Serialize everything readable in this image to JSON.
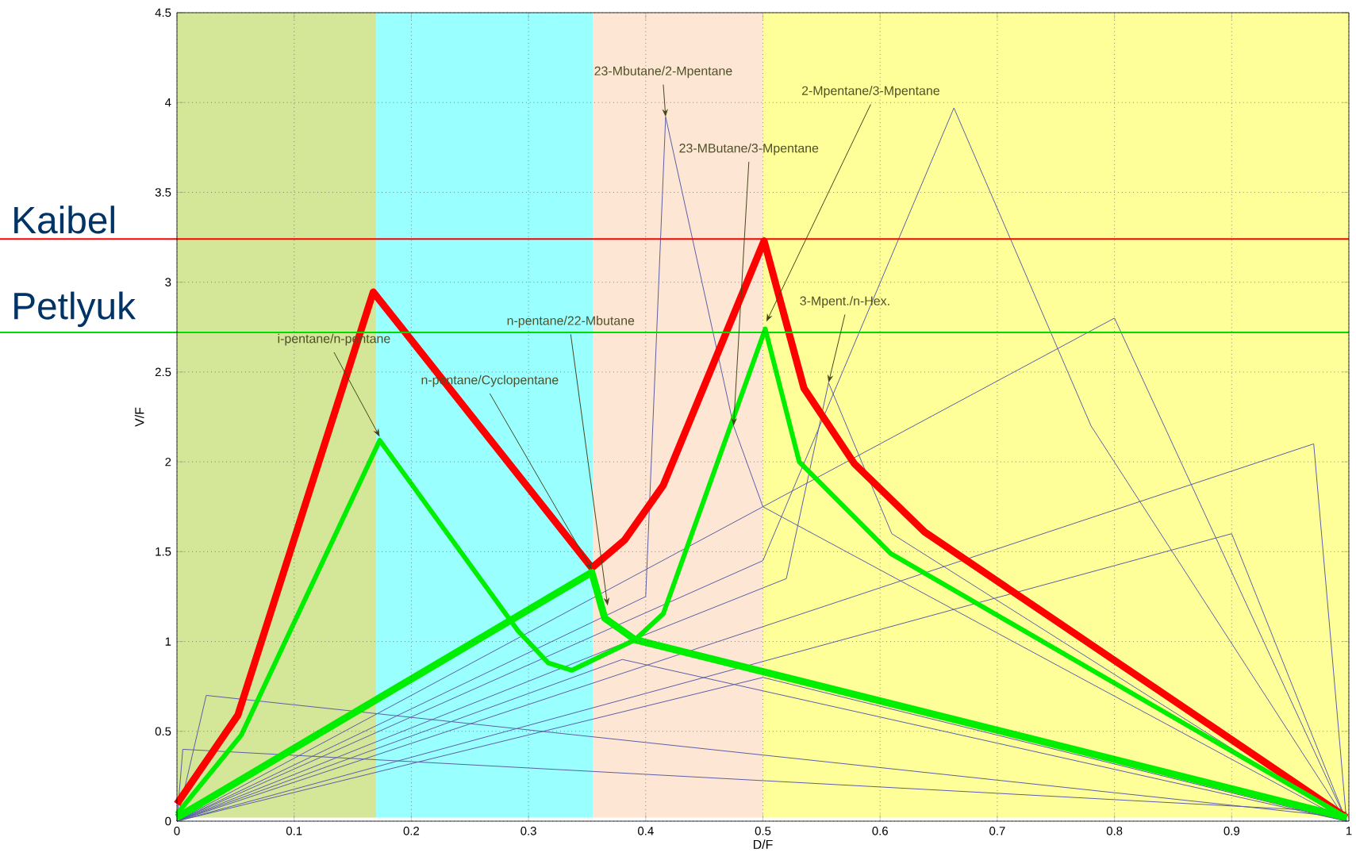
{
  "chart_data": {
    "type": "line",
    "xlabel": "D/F",
    "ylabel": "V/F",
    "xlim": [
      0,
      1
    ],
    "xticks": [
      0,
      0.1,
      0.2,
      0.3,
      0.4,
      0.5,
      0.6,
      0.7,
      0.8,
      0.9,
      1
    ],
    "ylim": [
      0,
      4.5
    ],
    "yticks": [
      0,
      0.5,
      1,
      1.5,
      2,
      2.5,
      3,
      3.5,
      4,
      4.5
    ],
    "grid": true,
    "line_style": "solid",
    "marker": "none",
    "bands": [
      {
        "axis": "x",
        "from": 0,
        "to": 0.17,
        "color": "#d4e697"
      },
      {
        "axis": "x",
        "from": 0.17,
        "to": 0.355,
        "color": "#99ffff"
      },
      {
        "axis": "x",
        "from": 0.355,
        "to": 0.5,
        "color": "#fde6d4"
      },
      {
        "axis": "x",
        "from": 0.5,
        "to": 1,
        "color": "#ffff99"
      }
    ],
    "ref_lines": [
      {
        "axis": "y",
        "value": 3.24,
        "label": "Kaibel",
        "color": "#ff0000"
      },
      {
        "axis": "y",
        "value": 2.72,
        "label": "Petlyuk",
        "color": "#00dd00"
      }
    ],
    "series": [
      {
        "color": "#5b5ea6",
        "x": [
          0,
          0.4,
          0.417,
          0.475,
          0.5,
          0.998
        ],
        "values": [
          0,
          1.25,
          3.92,
          2.2,
          1.75,
          0
        ]
      },
      {
        "color": "#5b5ea6",
        "x": [
          0,
          0.5,
          0.663,
          0.78,
          0.998
        ],
        "values": [
          0,
          1.45,
          3.97,
          2.2,
          0
        ]
      },
      {
        "color": "#5b5ea6",
        "x": [
          0,
          0.52,
          0.556,
          0.61,
          0.998
        ],
        "values": [
          0,
          1.35,
          2.44,
          1.6,
          0
        ]
      },
      {
        "color": "#5b5ea6",
        "x": [
          0,
          0.97,
          0.998
        ],
        "values": [
          0,
          2.1,
          0
        ]
      },
      {
        "color": "#5b5ea6",
        "x": [
          0,
          0.8,
          0.998
        ],
        "values": [
          0,
          2.8,
          0
        ]
      },
      {
        "color": "#5b5ea6",
        "x": [
          0,
          0.9,
          0.998
        ],
        "values": [
          0,
          1.6,
          0
        ]
      },
      {
        "color": "#5b5ea6",
        "x": [
          0,
          0.5,
          0.998
        ],
        "values": [
          0,
          0.8,
          0
        ]
      },
      {
        "color": "#5b5ea6",
        "x": [
          0,
          0.38,
          0.998
        ],
        "values": [
          0,
          0.9,
          0
        ]
      },
      {
        "color": "#5b5ea6",
        "x": [
          0,
          0.025,
          0.998
        ],
        "values": [
          0,
          0.7,
          0.02
        ]
      },
      {
        "color": "#5b5ea6",
        "x": [
          0,
          0.005,
          0.998
        ],
        "values": [
          0,
          0.4,
          0.05
        ]
      },
      {
        "color": "#ff0000",
        "x": [
          0,
          0.052,
          0.1675,
          0.354,
          0.382,
          0.415,
          0.501,
          0.535,
          0.578,
          0.638,
          0.998
        ],
        "values": [
          0.096,
          0.59,
          2.945,
          1.41,
          1.565,
          1.87,
          3.23,
          2.41,
          1.99,
          1.61,
          0.02
        ]
      },
      {
        "color": "#00ee00",
        "x": [
          0,
          0.055,
          0.173,
          0.291,
          0.317,
          0.337,
          0.391,
          0.415,
          0.502,
          0.531,
          0.609,
          0.998
        ],
        "values": [
          0.04,
          0.48,
          2.12,
          1.06,
          0.88,
          0.84,
          1.01,
          1.155,
          2.74,
          2.0,
          1.49,
          0.02
        ]
      },
      {
        "color": "#00ee00",
        "x": [
          0,
          0.354,
          0.365,
          0.391,
          0.998
        ],
        "values": [
          0.02,
          1.385,
          1.13,
          1.01,
          0.02
        ]
      }
    ],
    "annotations": [
      {
        "text": "i-pentane/n-pentane",
        "x": 0.173,
        "y": 2.14
      },
      {
        "text": "23-Mbutane/2-Mpentane",
        "x": 0.417,
        "y": 3.92
      },
      {
        "text": "23-MButane/3-Mpentane",
        "x": 0.475,
        "y": 2.2
      },
      {
        "text": "2-Mpentane/3-Mpentane",
        "x": 0.503,
        "y": 2.78
      },
      {
        "text": "3-Mpent./n-Hex.",
        "x": 0.556,
        "y": 2.44
      },
      {
        "text": "n-pentane/22-Mbutane",
        "x": 0.3675,
        "y": 1.2
      },
      {
        "text": "n-pentane/Cyclopentane",
        "x": 0.354,
        "y": 1.4
      }
    ]
  }
}
